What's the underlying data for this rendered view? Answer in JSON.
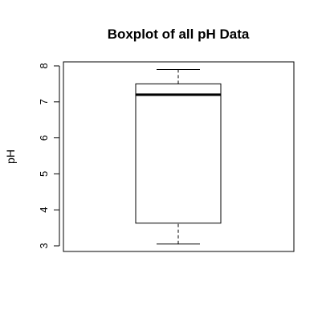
{
  "chart_data": {
    "type": "boxplot",
    "title": "Boxplot of all pH Data",
    "xlabel": "",
    "ylabel": "pH",
    "ylim": [
      2.8,
      8.1
    ],
    "y_ticks": [
      3,
      4,
      5,
      6,
      7,
      8
    ],
    "grid": false,
    "box": {
      "min": 3.05,
      "q1": 3.63,
      "median": 7.2,
      "q3": 7.5,
      "max": 7.9
    }
  }
}
